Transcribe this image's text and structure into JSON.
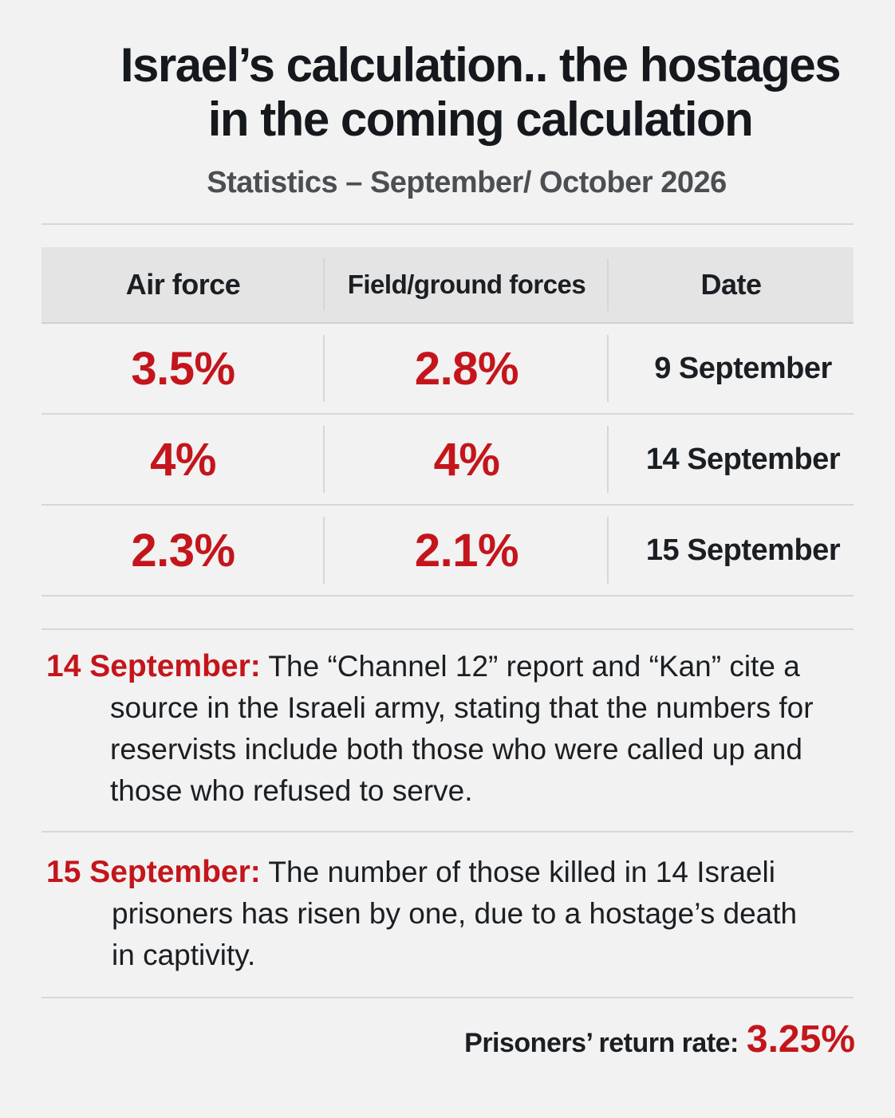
{
  "header": {
    "title_line1": "Israel’s calculation.. the hostages",
    "title_line2": "in the coming calculation",
    "subtitle": "Statistics – September/ October 2026"
  },
  "table": {
    "columns": [
      "Air force",
      "Field/ground forces",
      "Date"
    ],
    "rows": [
      {
        "air": "3.5%",
        "ground": "2.8%",
        "date": "9 September"
      },
      {
        "air": "4%",
        "ground": "4%",
        "date": "14 September"
      },
      {
        "air": "2.3%",
        "ground": "2.1%",
        "date": "15 September"
      }
    ]
  },
  "notes": [
    {
      "lead": "14 September:",
      "first": "The “Channel 12” report and “Kan” cite a",
      "rest": "source in the Israeli army, stating that the numbers for reservists include both those who were called up and those who refused to serve."
    },
    {
      "lead": "15 September:",
      "first": "The number of those killed in 14 Israeli",
      "rest": "prisoners has risen by one, due to a hostage’s death in captivity."
    }
  ],
  "footer": {
    "label": "Prisoners’ return rate:",
    "value": "3.25%"
  },
  "colors": {
    "accent": "#c4151c",
    "background": "#f1f2f1",
    "header_row": "#e3e4e3"
  }
}
